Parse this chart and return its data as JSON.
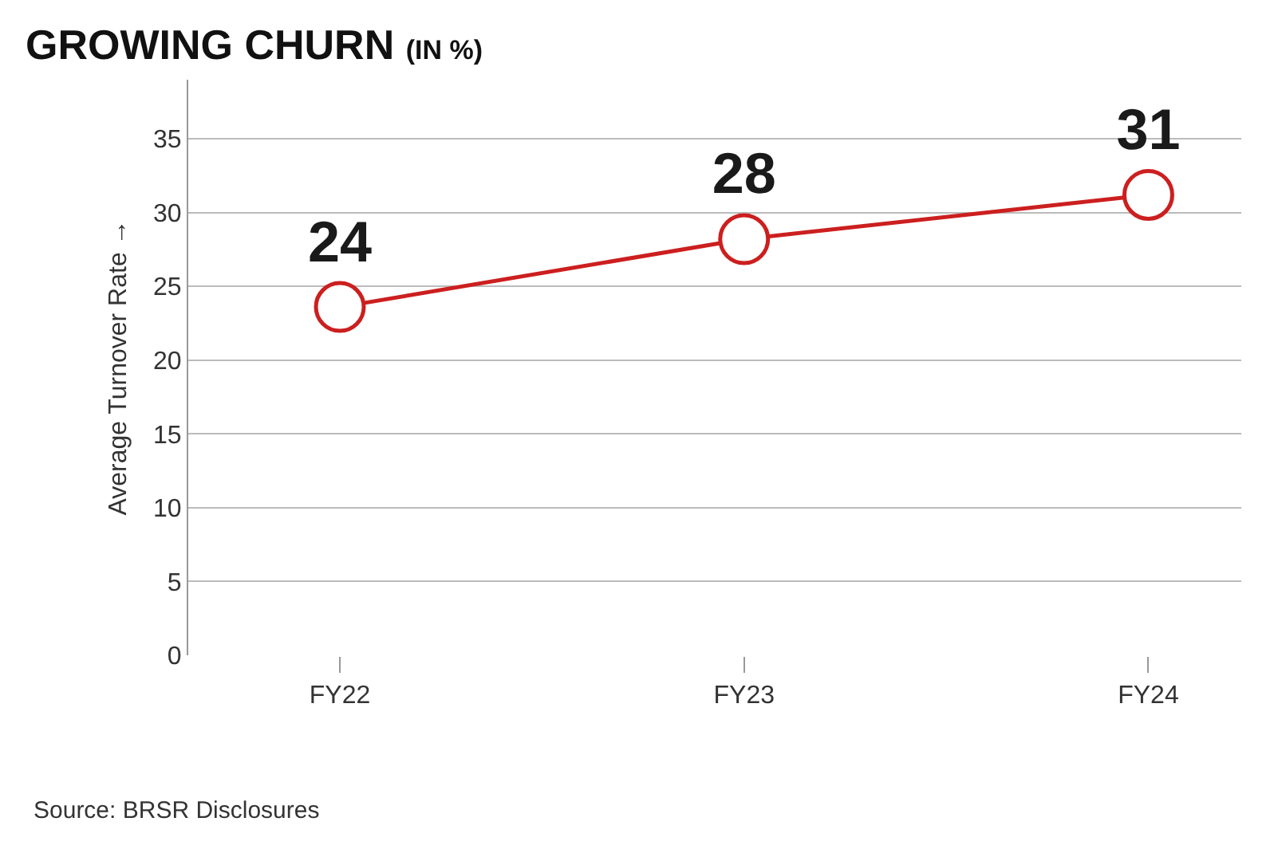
{
  "chart_data": {
    "type": "line",
    "title": "GROWING CHURN",
    "subtitle": "(IN %)",
    "ylabel": "Average Turnover Rate →",
    "categories": [
      "FY22",
      "FY23",
      "FY24"
    ],
    "series": [
      {
        "color": "#cc1f1f",
        "values": [
          23.6,
          28.2,
          31.2
        ],
        "value_labels": [
          "24",
          "28",
          "31"
        ]
      }
    ],
    "ylim": [
      0,
      39
    ],
    "yticks": [
      0,
      5,
      10,
      15,
      20,
      25,
      30,
      35
    ],
    "grid": "y",
    "marker": "circle",
    "line_style": "solid",
    "annotations": [
      "Source: BRSR Disclosures"
    ]
  }
}
